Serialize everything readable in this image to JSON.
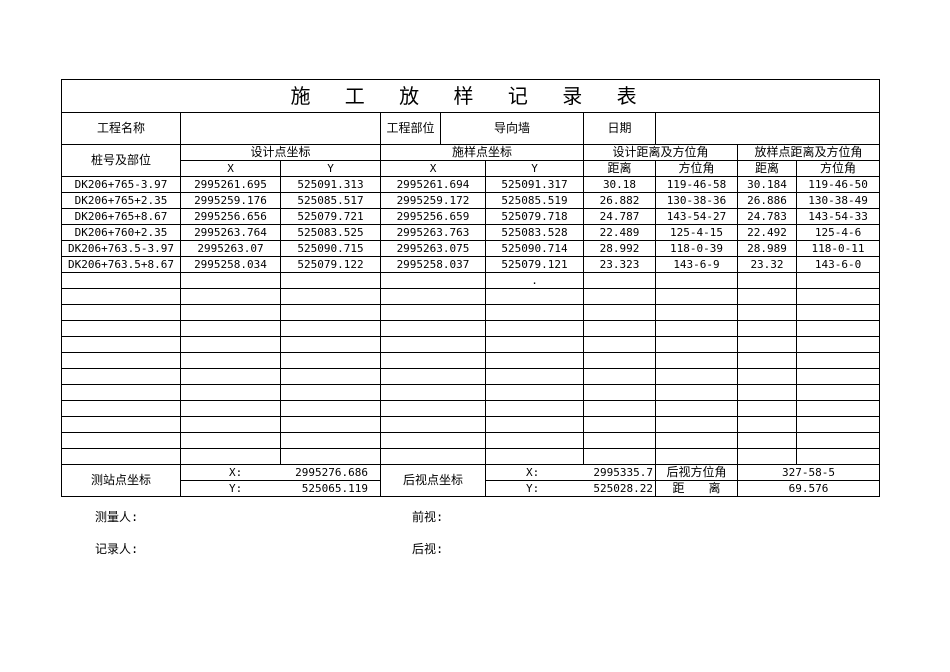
{
  "title": "施 工 放 样 记 录 表",
  "info": {
    "project_name_label": "工程名称",
    "project_name": "",
    "part_label": "工程部位",
    "part_value": "导向墙",
    "date_label": "日期",
    "date_value": ""
  },
  "headers": {
    "station": "桩号及部位",
    "design": "设计点坐标",
    "stake": "施样点坐标",
    "x": "X",
    "y": "Y",
    "design_dist": "设计距离及方位角",
    "stake_dist": "放样点距离及方位角",
    "dist": "距离",
    "azimuth": "方位角"
  },
  "rows": [
    [
      "DK206+765-3.97",
      "2995261.695",
      "525091.313",
      "2995261.694",
      "525091.317",
      "30.18",
      "119-46-58",
      "30.184",
      "119-46-50"
    ],
    [
      "DK206+765+2.35",
      "2995259.176",
      "525085.517",
      "2995259.172",
      "525085.519",
      "26.882",
      "130-38-36",
      "26.886",
      "130-38-49"
    ],
    [
      "DK206+765+8.67",
      "2995256.656",
      "525079.721",
      "2995256.659",
      "525079.718",
      "24.787",
      "143-54-27",
      "24.783",
      "143-54-33"
    ],
    [
      "DK206+760+2.35",
      "2995263.764",
      "525083.525",
      "2995263.763",
      "525083.528",
      "22.489",
      "125-4-15",
      "22.492",
      "125-4-6"
    ],
    [
      "DK206+763.5-3.97",
      "2995263.07",
      "525090.715",
      "2995263.075",
      "525090.714",
      "28.992",
      "118-0-39",
      "28.989",
      "118-0-11"
    ],
    [
      "DK206+763.5+8.67",
      "2995258.034",
      "525079.122",
      "2995258.037",
      "525079.121",
      "23.323",
      "143-6-9",
      "23.32",
      "143-6-0"
    ],
    [
      "",
      "",
      "",
      "",
      ".",
      "",
      "",
      "",
      ""
    ]
  ],
  "empty_rows": 11,
  "bottom": {
    "station_label": "测站点坐标",
    "station_x_label": "X:",
    "station_x": "2995276.686",
    "station_y_label": "Y:",
    "station_y": "525065.119",
    "back_label": "后视点坐标",
    "back_x_label": "X:",
    "back_x": "2995335.7",
    "back_y_label": "Y:",
    "back_y": "525028.22",
    "back_az_label": "后视方位角",
    "back_az": "327-58-5",
    "dist_label": "距　　离",
    "dist": "69.576"
  },
  "footer": {
    "surveyor": "测量人:",
    "front": "前视:",
    "recorder": "记录人:",
    "back": "后视:"
  }
}
